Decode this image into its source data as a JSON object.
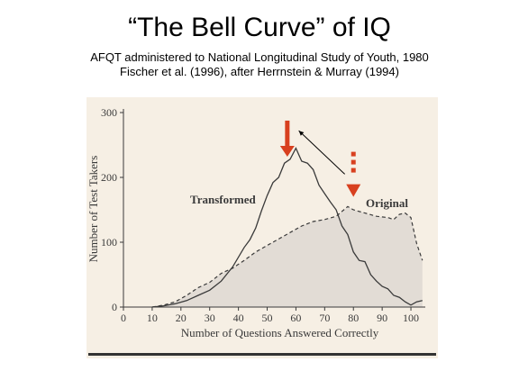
{
  "slide": {
    "title": "“The Bell Curve” of IQ",
    "subtitle1": "AFQT administered to National Longitudinal Study of Youth, 1980",
    "subtitle2": "Fischer et al. (1996), after Herrnstein & Murray (1994)"
  },
  "colors": {
    "page": "#ffffff",
    "paper": "#f6efe4",
    "original_fill": "#e2dcd5",
    "line": "#3a3a3a",
    "arrow_red": "#d8401f",
    "bottom_rule": "#333333"
  },
  "chart_data": {
    "type": "line",
    "xlabel": "Number of Questions Answered Correctly",
    "ylabel": "Number of Test Takers",
    "xlim": [
      0,
      105
    ],
    "ylim": [
      0,
      300
    ],
    "x_ticks": [
      0,
      10,
      20,
      30,
      40,
      50,
      60,
      70,
      80,
      90,
      100
    ],
    "y_ticks": [
      0,
      100,
      200,
      300
    ],
    "grid": false,
    "legend": "inline labels",
    "series": [
      {
        "name": "Transformed",
        "style": "solid",
        "x": [
          10,
          14,
          18,
          22,
          26,
          30,
          34,
          38,
          42,
          44,
          46,
          48,
          50,
          52,
          54,
          56,
          58,
          60,
          62,
          64,
          66,
          68,
          70,
          72,
          74,
          76,
          78,
          80,
          82,
          84,
          86,
          88,
          90,
          92,
          94,
          96,
          98,
          100,
          102,
          104
        ],
        "y": [
          0,
          2,
          5,
          10,
          18,
          26,
          40,
          62,
          92,
          104,
          122,
          148,
          172,
          192,
          200,
          222,
          228,
          245,
          225,
          222,
          212,
          188,
          175,
          162,
          150,
          125,
          112,
          85,
          72,
          70,
          50,
          40,
          32,
          28,
          18,
          15,
          8,
          3,
          8,
          10
        ]
      },
      {
        "name": "Original",
        "style": "dashed",
        "x": [
          10,
          14,
          18,
          22,
          26,
          30,
          34,
          38,
          42,
          46,
          50,
          54,
          58,
          62,
          66,
          70,
          74,
          78,
          80,
          84,
          88,
          92,
          94,
          96,
          98,
          100,
          102,
          104
        ],
        "y": [
          0,
          3,
          8,
          18,
          30,
          38,
          52,
          60,
          72,
          85,
          95,
          105,
          115,
          125,
          132,
          135,
          140,
          155,
          150,
          145,
          140,
          138,
          135,
          143,
          145,
          138,
          98,
          72
        ]
      }
    ],
    "annotations": [
      {
        "type": "arrow-solid-red",
        "at_x": 57,
        "points": "down",
        "to_y": 232
      },
      {
        "type": "arrow-dashed-red",
        "at_x": 80,
        "points": "down",
        "to_y": 170
      },
      {
        "type": "thin-black-arrow",
        "from": [
          77,
          205
        ],
        "to": [
          61,
          272
        ]
      }
    ]
  }
}
